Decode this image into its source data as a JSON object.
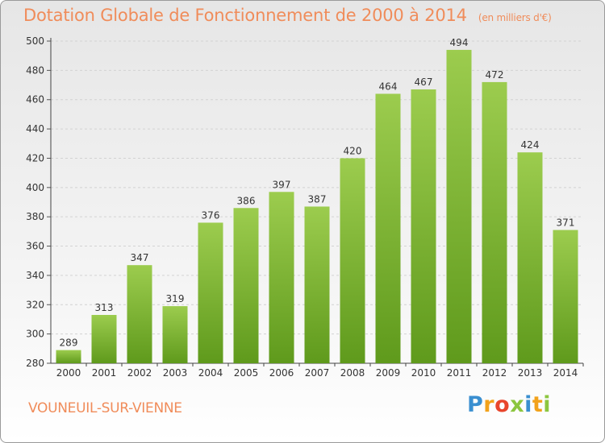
{
  "chart_data": {
    "type": "bar",
    "title": "Dotation Globale de Fonctionnement de 2000 à 2014",
    "subtitle": "(en milliers d'€)",
    "categories": [
      "2000",
      "2001",
      "2002",
      "2003",
      "2004",
      "2005",
      "2006",
      "2007",
      "2008",
      "2009",
      "2010",
      "2011",
      "2012",
      "2013",
      "2014"
    ],
    "values": [
      289,
      313,
      347,
      319,
      376,
      386,
      397,
      387,
      420,
      464,
      467,
      494,
      472,
      424,
      371
    ],
    "ylim": [
      280,
      500
    ],
    "yticks": [
      280,
      300,
      320,
      340,
      360,
      380,
      400,
      420,
      440,
      460,
      480,
      500
    ],
    "grid": true,
    "bar_color_top": "#9ccc4e",
    "bar_color_bottom": "#5f9a1c",
    "title_color": "#f08c5a"
  },
  "location": "VOUNEUIL-SUR-VIENNE",
  "logo": {
    "letters": [
      "P",
      "r",
      "o",
      "x",
      "i",
      "t",
      "i"
    ],
    "colors": [
      "#3a8fd0",
      "#f2a21b",
      "#e8452c",
      "#8cc63f",
      "#3a8fd0",
      "#f2a21b",
      "#8cc63f"
    ]
  }
}
